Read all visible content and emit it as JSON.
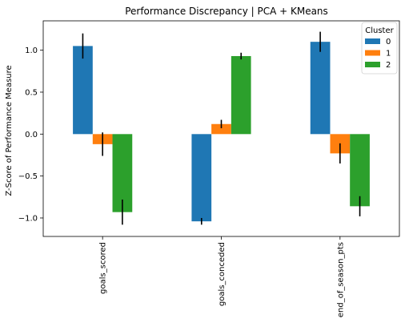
{
  "chart_data": {
    "type": "bar",
    "title": "Performance Discrepancy | PCA + KMeans",
    "xlabel": "",
    "ylabel": "Z-Score of Performance Measure",
    "categories": [
      "goals_scored",
      "goals_conceded",
      "end_of_season_pts"
    ],
    "ylim": [
      -1.22,
      1.35
    ],
    "yticks": [
      -1.0,
      -0.5,
      0.0,
      0.5,
      1.0
    ],
    "ytick_labels": [
      "−1.0",
      "−0.5",
      "0.0",
      "0.5",
      "1.0"
    ],
    "grid": false,
    "legend_title": "Cluster",
    "legend_position": "top-right",
    "series": [
      {
        "name": "0",
        "color": "#1f77b4",
        "values": [
          1.05,
          -1.04,
          1.1
        ],
        "err": [
          0.15,
          0.04,
          0.12
        ]
      },
      {
        "name": "1",
        "color": "#ff7f0e",
        "values": [
          -0.12,
          0.12,
          -0.23
        ],
        "err": [
          0.14,
          0.05,
          0.12
        ]
      },
      {
        "name": "2",
        "color": "#2ca02c",
        "values": [
          -0.93,
          0.93,
          -0.86
        ],
        "err": [
          0.15,
          0.04,
          0.12
        ]
      }
    ]
  }
}
